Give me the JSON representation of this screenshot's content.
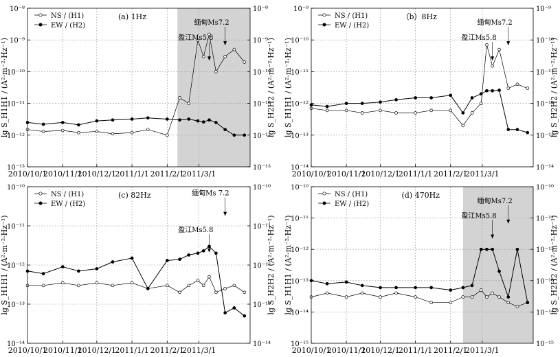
{
  "chart_data": [
    {
      "type": "line",
      "panel_label": "(a)  1Hz",
      "ylabel_left": "lg S_H1H1 / (A²·m⁻²·Hz⁻¹)",
      "ylabel_right": "lg S_H2H2 / (A²·m⁻²·Hz⁻¹)",
      "xlim": [
        "2010-10-01",
        "2011-04-15"
      ],
      "xticks": [
        "2010/10/1",
        "2010/11/1",
        "2010/12/1",
        "2011/1/1",
        "2011/2/1",
        "2011/3/1"
      ],
      "y_scale": "log",
      "ylim": [
        1e-13,
        1e-08
      ],
      "yticks": [
        "10⁻¹³",
        "10⁻¹²",
        "10⁻¹¹",
        "10⁻¹⁰",
        "10⁻⁹",
        "10⁻⁸"
      ],
      "shaded_range": [
        "2011-02-10",
        "2011-04-15"
      ],
      "legend": [
        "NS / (H1)",
        "EW / (H2)"
      ],
      "annotations": [
        {
          "text": "缅甸Ms7.2",
          "x": "2011-03-24",
          "y": 3e-09
        },
        {
          "text": "盈江Ms5.8",
          "x": "2011-03-10",
          "y": 1e-09
        }
      ],
      "series": [
        {
          "name": "NS / (H1)",
          "marker": "open",
          "x": [
            "2010-10-01",
            "2010-10-15",
            "2010-11-01",
            "2010-11-15",
            "2010-12-01",
            "2010-12-15",
            "2011-01-01",
            "2011-01-15",
            "2011-02-01",
            "2011-02-12",
            "2011-02-20",
            "2011-02-28",
            "2011-03-05",
            "2011-03-10",
            "2011-03-16",
            "2011-03-24",
            "2011-04-01",
            "2011-04-10"
          ],
          "y": [
            1.5e-12,
            1.3e-12,
            1.4e-12,
            1.2e-12,
            1.3e-12,
            1.1e-12,
            1.2e-12,
            1.5e-12,
            1e-12,
            1.5e-11,
            1e-11,
            1e-09,
            3e-10,
            1.5e-09,
            1e-10,
            3e-10,
            5e-10,
            2e-10
          ]
        },
        {
          "name": "EW / (H2)",
          "marker": "filled",
          "x": [
            "2010-10-01",
            "2010-10-15",
            "2010-11-01",
            "2010-11-15",
            "2010-12-01",
            "2010-12-15",
            "2011-01-01",
            "2011-01-15",
            "2011-02-01",
            "2011-02-12",
            "2011-02-20",
            "2011-02-28",
            "2011-03-05",
            "2011-03-10",
            "2011-03-16",
            "2011-03-24",
            "2011-04-01",
            "2011-04-10"
          ],
          "y": [
            2.5e-12,
            2.2e-12,
            2.5e-12,
            2.1e-12,
            2.8e-12,
            3e-12,
            3.2e-12,
            3.5e-12,
            3.2e-12,
            3e-12,
            3.2e-12,
            2.8e-12,
            2.6e-12,
            3e-12,
            2.5e-12,
            1.5e-12,
            1e-12,
            1e-12
          ]
        }
      ]
    },
    {
      "type": "line",
      "panel_label": "（b）8Hz",
      "ylabel_left": "lg S_H1H1 / (A²·m⁻²·Hz⁻¹)",
      "ylabel_right": "lg S_H2H2 / (A²·m⁻²·Hz⁻¹)",
      "xlim": [
        "2010-10-01",
        "2011-04-15"
      ],
      "xticks": [
        "2010/10/1",
        "2010/11/1",
        "2010/12/1",
        "2011/1/1",
        "2011/2/1",
        "2011/3/1"
      ],
      "y_scale": "log",
      "ylim": [
        1e-14,
        1e-09
      ],
      "yticks": [
        "10⁻¹⁴",
        "10⁻¹³",
        "10⁻¹²",
        "10⁻¹¹",
        "10⁻¹⁰",
        "10⁻⁹"
      ],
      "legend": [
        "NS / (H1)",
        "EW / (H2)"
      ],
      "annotations": [
        {
          "text": "缅甸Ms7.2",
          "x": "2011-03-24",
          "y": 3e-10
        },
        {
          "text": "盈江Ms5.8",
          "x": "2011-03-10",
          "y": 1e-10
        }
      ],
      "series": [
        {
          "name": "NS / (H1)",
          "marker": "open",
          "x": [
            "2010-10-01",
            "2010-10-15",
            "2010-11-01",
            "2010-11-15",
            "2010-12-01",
            "2010-12-15",
            "2011-01-01",
            "2011-01-15",
            "2011-02-01",
            "2011-02-12",
            "2011-02-20",
            "2011-02-28",
            "2011-03-05",
            "2011-03-10",
            "2011-03-16",
            "2011-03-24",
            "2011-04-01",
            "2011-04-10"
          ],
          "y": [
            7e-13,
            6e-13,
            6e-13,
            5e-13,
            6e-13,
            5e-13,
            5e-13,
            6e-13,
            6e-13,
            2e-13,
            5e-13,
            1e-12,
            7e-11,
            1.5e-11,
            5e-11,
            3e-12,
            4e-12,
            3e-12
          ]
        },
        {
          "name": "EW / (H2)",
          "marker": "filled",
          "x": [
            "2010-10-01",
            "2010-10-15",
            "2010-11-01",
            "2010-11-15",
            "2010-12-01",
            "2010-12-15",
            "2011-01-01",
            "2011-01-15",
            "2011-02-01",
            "2011-02-12",
            "2011-02-20",
            "2011-02-28",
            "2011-03-05",
            "2011-03-10",
            "2011-03-16",
            "2011-03-24",
            "2011-04-01",
            "2011-04-10"
          ],
          "y": [
            9e-13,
            8e-13,
            1e-12,
            1e-12,
            1.1e-12,
            1.3e-12,
            1.5e-12,
            1.5e-12,
            1.8e-12,
            5e-13,
            1.5e-12,
            2e-12,
            2.5e-12,
            2.5e-12,
            2.6e-12,
            1.5e-13,
            1.5e-13,
            1.2e-13
          ]
        }
      ]
    },
    {
      "type": "line",
      "panel_label": "(c) 82Hz",
      "ylabel_left": "lg S_H1H1 / (A²·m⁻²·Hz⁻¹)",
      "ylabel_right": "lg S_H2H2 / (A²·m⁻²·Hz⁻¹)",
      "xlim": [
        "2010-10-01",
        "2011-04-15"
      ],
      "xticks": [
        "2010/10/1",
        "2010/11/1",
        "2010/12/1",
        "2011/1/1",
        "2011/2/1",
        "2011/3/1"
      ],
      "y_scale": "log",
      "ylim": [
        1e-14,
        1e-10
      ],
      "yticks": [
        "10⁻¹⁴",
        "10⁻¹³",
        "10⁻¹²",
        "10⁻¹¹",
        "10⁻¹⁰"
      ],
      "legend": [
        "NS / (H1)",
        "EW / (H2)"
      ],
      "annotations": [
        {
          "text": "缅甸Ms 7.2",
          "x": "2011-03-24",
          "y": 6e-11
        },
        {
          "text": "盈江Ms5.8",
          "x": "2011-03-10",
          "y": 7e-12
        }
      ],
      "series": [
        {
          "name": "NS / (H1)",
          "marker": "open",
          "x": [
            "2010-10-01",
            "2010-10-15",
            "2010-11-01",
            "2010-11-15",
            "2010-12-01",
            "2010-12-15",
            "2011-01-01",
            "2011-01-15",
            "2011-02-01",
            "2011-02-12",
            "2011-02-20",
            "2011-02-28",
            "2011-03-05",
            "2011-03-10",
            "2011-03-16",
            "2011-03-24",
            "2011-04-01",
            "2011-04-10"
          ],
          "y": [
            3e-13,
            3e-13,
            3.5e-13,
            3e-13,
            3.5e-13,
            3e-13,
            3.5e-13,
            2.5e-13,
            3e-13,
            2e-13,
            3e-13,
            4e-13,
            3e-13,
            5e-13,
            2e-13,
            2.5e-13,
            3e-13,
            2e-13
          ]
        },
        {
          "name": "EW / (H2)",
          "marker": "filled",
          "x": [
            "2010-10-01",
            "2010-10-15",
            "2010-11-01",
            "2010-11-15",
            "2010-12-01",
            "2010-12-15",
            "2011-01-01",
            "2011-01-15",
            "2011-02-01",
            "2011-02-12",
            "2011-02-20",
            "2011-02-28",
            "2011-03-05",
            "2011-03-10",
            "2011-03-16",
            "2011-03-24",
            "2011-04-01",
            "2011-04-10"
          ],
          "y": [
            7e-13,
            6e-13,
            9e-13,
            7e-13,
            8e-13,
            1.2e-12,
            1.5e-12,
            2.5e-13,
            1.3e-12,
            1.4e-12,
            1.8e-12,
            2e-12,
            2.3e-12,
            3e-12,
            2e-12,
            6e-14,
            8e-14,
            5e-14
          ]
        }
      ]
    },
    {
      "type": "line",
      "panel_label": "(d) 470Hz",
      "ylabel_left": "lg S_H1H1 / (A²·m⁻²·Hz⁻¹)",
      "ylabel_right": "lg S_H2H2 / (A²·m⁻²·Hz⁻¹)",
      "xlim": [
        "2010-10-01",
        "2011-04-15"
      ],
      "xticks": [
        "2010/10/1",
        "2010/11/1",
        "2010/12/1",
        "2011/1/1",
        "2011/2/1",
        "2011/3/1"
      ],
      "y_scale": "log",
      "ylim": [
        1e-15,
        1e-10
      ],
      "yticks": [
        "10⁻¹⁵",
        "10⁻¹⁴",
        "10⁻¹³",
        "10⁻¹²",
        "10⁻¹¹",
        "10⁻¹⁰"
      ],
      "shaded_range": [
        "2011-02-12",
        "2011-04-15"
      ],
      "legend": [
        "NS / (H1)",
        "EW / (H2)"
      ],
      "annotations": [
        {
          "text": "缅甸Ms7.2",
          "x": "2011-03-24",
          "y": 3e-11
        },
        {
          "text": "盈江Ms5.8",
          "x": "2011-03-10",
          "y": 1e-11
        }
      ],
      "series": [
        {
          "name": "NS / (H1)",
          "marker": "open",
          "x": [
            "2010-10-01",
            "2010-10-15",
            "2010-11-01",
            "2010-11-15",
            "2010-12-01",
            "2010-12-15",
            "2011-01-01",
            "2011-01-15",
            "2011-02-01",
            "2011-02-12",
            "2011-02-20",
            "2011-02-28",
            "2011-03-05",
            "2011-03-10",
            "2011-03-16",
            "2011-03-24",
            "2011-04-01",
            "2011-04-10"
          ],
          "y": [
            3e-14,
            4e-14,
            3e-14,
            4e-14,
            3e-14,
            4e-14,
            3e-14,
            2e-14,
            2e-14,
            3e-14,
            3e-14,
            5e-14,
            3e-14,
            4e-14,
            3e-14,
            2e-14,
            1.5e-14,
            2e-14
          ]
        },
        {
          "name": "EW / (H2)",
          "marker": "filled",
          "x": [
            "2010-10-01",
            "2010-10-15",
            "2010-11-01",
            "2010-11-15",
            "2010-12-01",
            "2010-12-15",
            "2011-01-01",
            "2011-01-15",
            "2011-02-01",
            "2011-02-12",
            "2011-02-20",
            "2011-02-28",
            "2011-03-05",
            "2011-03-10",
            "2011-03-16",
            "2011-03-24",
            "2011-04-01",
            "2011-04-10"
          ],
          "y": [
            1e-13,
            8e-14,
            9e-14,
            7e-14,
            6e-14,
            6e-14,
            6e-14,
            6e-14,
            5e-14,
            6e-14,
            7e-14,
            1e-12,
            1e-12,
            1e-12,
            2e-13,
            3e-14,
            1e-12,
            2e-14
          ]
        }
      ]
    }
  ]
}
